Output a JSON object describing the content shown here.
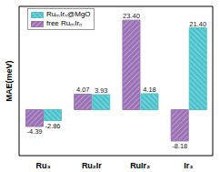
{
  "chart_data": {
    "type": "bar",
    "y_label": "MAE(meV)",
    "categories": [
      "Ru₃",
      "Ru₂Ir",
      "RuIr₂",
      "Ir₃"
    ],
    "series": [
      {
        "name": "free RuₘIrₙ",
        "color": "#9b72b5",
        "values": [
          -4.39,
          4.07,
          23.4,
          -8.18
        ],
        "value_labels": [
          "-4.39",
          "4.07",
          "23.40",
          "-8.18"
        ]
      },
      {
        "name": "RuₘIrₙ@MgO",
        "color": "#4fc3cc",
        "values": [
          -2.86,
          3.93,
          4.18,
          21.4
        ],
        "value_labels": [
          "-2.86",
          "3.93",
          "4.18",
          "21.40"
        ]
      }
    ],
    "ylim": [
      -12,
      27
    ],
    "tick_labels": "x",
    "data_labels": true,
    "legend": "upper left"
  }
}
